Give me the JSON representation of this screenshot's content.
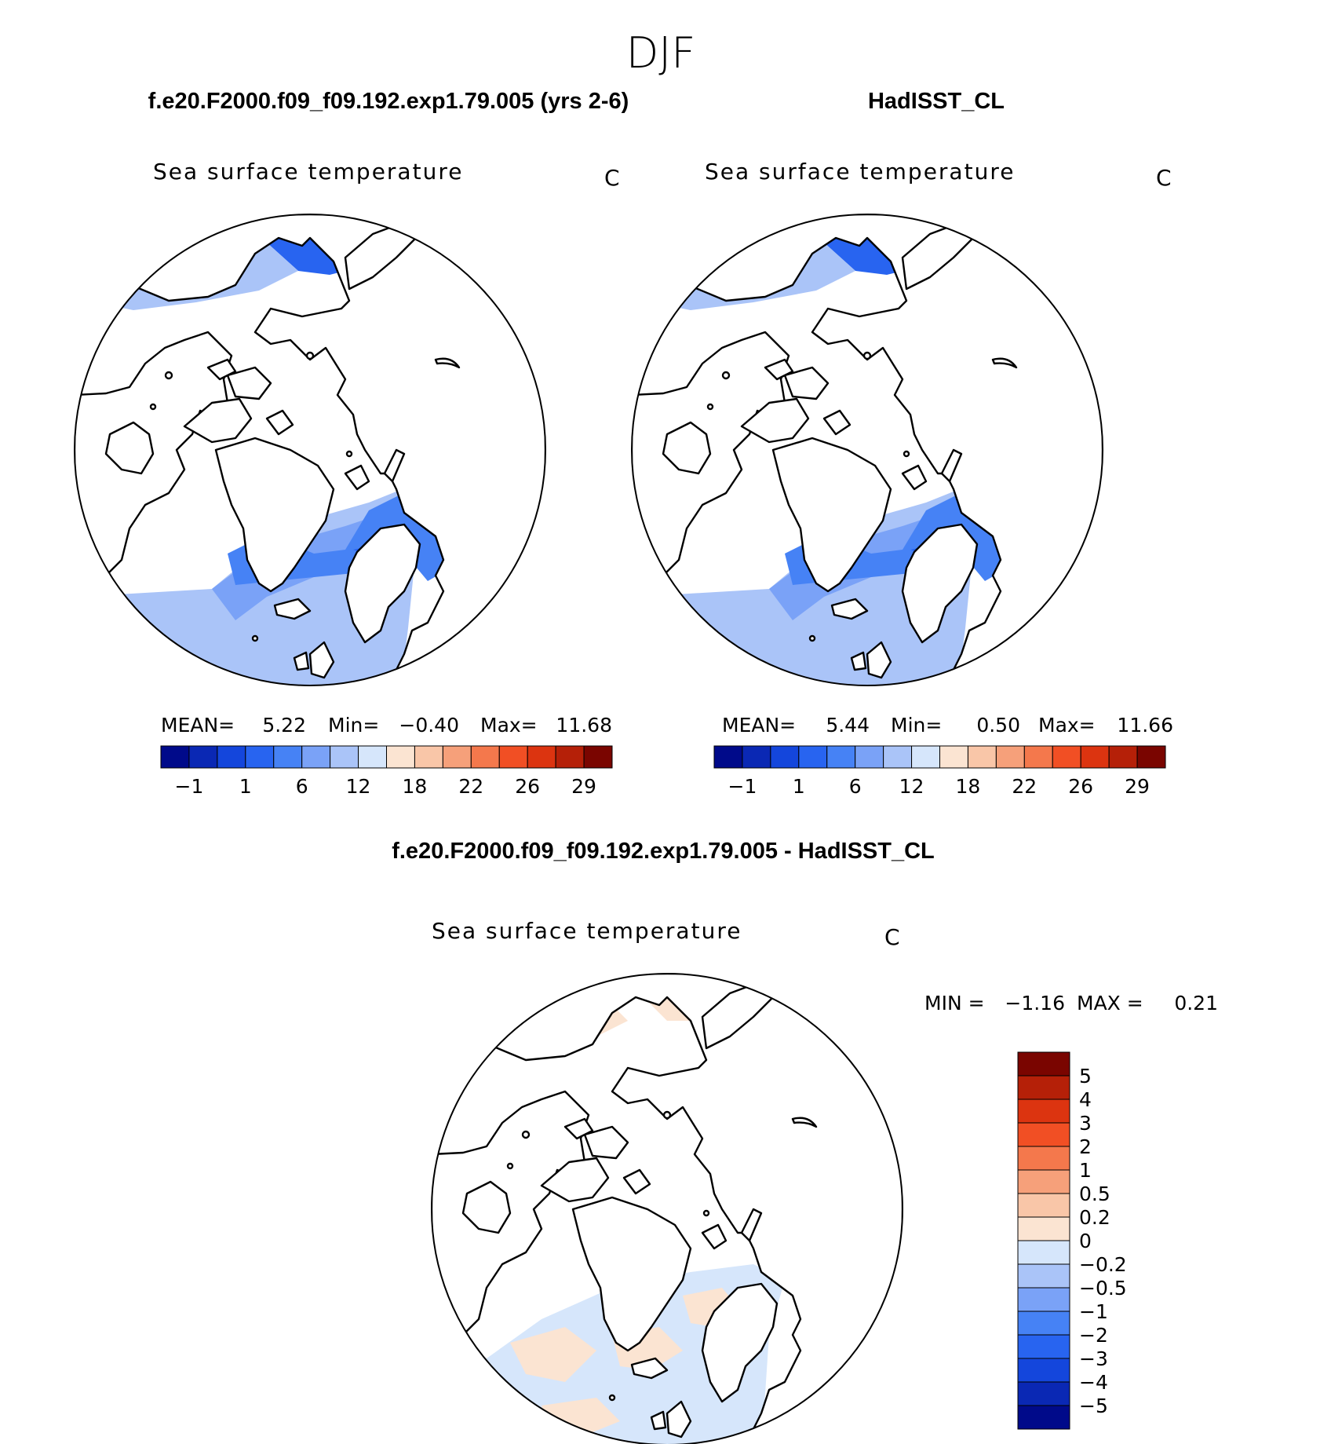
{
  "figure": {
    "season": "DJF",
    "case_title": "f.e20.F2000.f09_f09.192.exp1.79.005 (yrs 2-6)",
    "obs_title": "HadISST_CL",
    "diff_title": "f.e20.F2000.f09_f09.192.exp1.79.005 - HadISST_CL"
  },
  "panels": [
    {
      "id": "model",
      "field": "Sea surface temperature",
      "units": "C",
      "stats": {
        "mean_label": "MEAN=",
        "mean": "5.22",
        "min_label": "Min=",
        "min": "−0.40",
        "max_label": "Max=",
        "max": "11.68"
      }
    },
    {
      "id": "obs",
      "field": "Sea surface temperature",
      "units": "C",
      "stats": {
        "mean_label": "MEAN=",
        "mean": "5.44",
        "min_label": "Min=",
        "min": "0.50",
        "max_label": "Max=",
        "max": "11.66"
      }
    },
    {
      "id": "diff",
      "field": "Sea surface temperature",
      "units": "C",
      "stats": {
        "min_label": "MIN =",
        "min": "−1.16",
        "max_label": "MAX =",
        "max": "0.21"
      }
    }
  ],
  "colorbars": {
    "sst": {
      "colors": [
        "#000a8a",
        "#0a28b4",
        "#1446dc",
        "#2864f0",
        "#4682f5",
        "#7aa2f7",
        "#aac4f8",
        "#d6e6fb",
        "#fbe4d2",
        "#f9c6a8",
        "#f6a07a",
        "#f4784c",
        "#f14f24",
        "#dc3410",
        "#b52008",
        "#7a0500"
      ],
      "tick_labels": [
        "−1",
        "1",
        "6",
        "12",
        "18",
        "22",
        "26",
        "29"
      ]
    },
    "diff": {
      "colors": [
        "#000a8a",
        "#0a28b4",
        "#1446dc",
        "#2864f0",
        "#4682f5",
        "#7aa2f7",
        "#aac4f8",
        "#d6e6fb",
        "#fbe4d2",
        "#f9c6a8",
        "#f6a07a",
        "#f4784c",
        "#f14f24",
        "#dc3410",
        "#b52008",
        "#7a0500"
      ],
      "tick_labels": [
        "−5",
        "−4",
        "−3",
        "−2",
        "−1",
        "−0.5",
        "−0.2",
        "0",
        "0.2",
        "0.5",
        "1",
        "2",
        "3",
        "4",
        "5"
      ]
    }
  }
}
